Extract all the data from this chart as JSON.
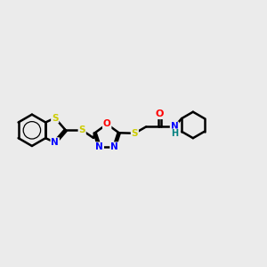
{
  "bg_color": "#ebebeb",
  "bond_color": "#000000",
  "S_color": "#cccc00",
  "N_color": "#0000ff",
  "O_color": "#ff0000",
  "H_color": "#008080",
  "bond_width": 1.8,
  "figsize": [
    3.0,
    3.0
  ],
  "dpi": 100,
  "xlim": [
    0,
    12
  ],
  "ylim": [
    0,
    10
  ]
}
